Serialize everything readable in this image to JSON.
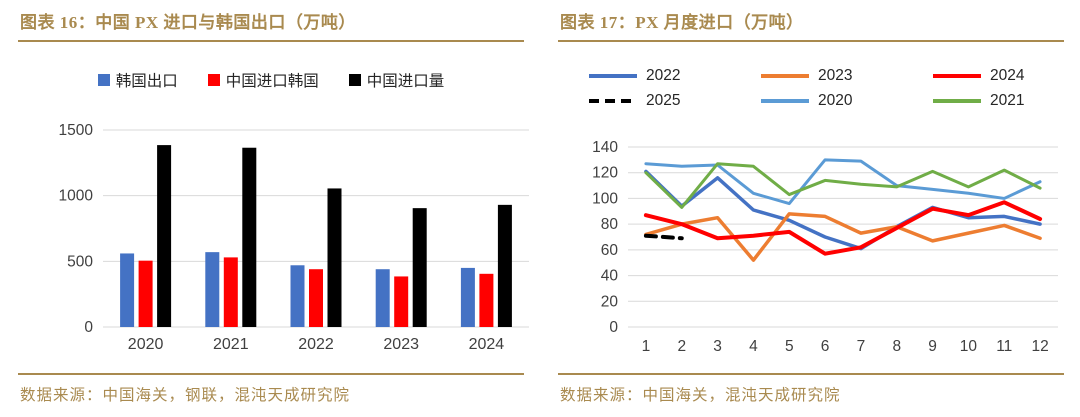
{
  "accent_color": "#A98A4F",
  "grid_color": "#D9D9D9",
  "left_panel": {
    "title": "图表  16：中国 PX 进口与韩国出口（万吨）",
    "source": "数据来源：中国海关，钢联，混沌天成研究院"
  },
  "right_panel": {
    "title": "图表  17：PX 月度进口（万吨）",
    "source": "数据来源：中国海关，混沌天成研究院"
  },
  "chart_data": [
    {
      "type": "bar",
      "title": "中国PX进口与韩国出口（万吨）",
      "categories": [
        "2020",
        "2021",
        "2022",
        "2023",
        "2024"
      ],
      "series": [
        {
          "name": "韩国出口",
          "color": "#4472C4",
          "values": [
            560,
            570,
            470,
            440,
            450
          ]
        },
        {
          "name": "中国进口韩国",
          "color": "#FF0000",
          "values": [
            505,
            530,
            440,
            385,
            405
          ]
        },
        {
          "name": "中国进口量",
          "color": "#000000",
          "values": [
            1385,
            1365,
            1055,
            905,
            930
          ]
        }
      ],
      "ylim": [
        0,
        1500
      ],
      "yticks": [
        0,
        500,
        1000,
        1500
      ],
      "grid": true,
      "legend_position": "top-center"
    },
    {
      "type": "line",
      "title": "PX月度进口（万吨）",
      "x": [
        "1",
        "2",
        "3",
        "4",
        "5",
        "6",
        "7",
        "8",
        "9",
        "10",
        "11",
        "12"
      ],
      "series": [
        {
          "name": "2022",
          "color": "#4472C4",
          "stroke_width": 3.5,
          "values": [
            121,
            94,
            116,
            91,
            83,
            70,
            61,
            78,
            93,
            85,
            86,
            80
          ]
        },
        {
          "name": "2023",
          "color": "#ED7D31",
          "stroke_width": 3.5,
          "values": [
            72,
            80,
            85,
            52,
            88,
            86,
            73,
            78,
            67,
            73,
            79,
            69
          ]
        },
        {
          "name": "2024",
          "color": "#FF0000",
          "stroke_width": 4,
          "values": [
            87,
            80,
            69,
            71,
            74,
            57,
            62,
            77,
            92,
            87,
            97,
            84
          ]
        },
        {
          "name": "2025",
          "color": "#000000",
          "stroke_width": 4,
          "dash": "10,7",
          "values": [
            71,
            69
          ]
        },
        {
          "name": "2020",
          "color": "#5B9BD5",
          "stroke_width": 3,
          "values": [
            127,
            125,
            126,
            104,
            96,
            130,
            129,
            110,
            107,
            104,
            100,
            113
          ]
        },
        {
          "name": "2021",
          "color": "#70AD47",
          "stroke_width": 3,
          "values": [
            120,
            93,
            127,
            125,
            103,
            114,
            111,
            109,
            121,
            109,
            122,
            108
          ]
        }
      ],
      "ylim": [
        0,
        140
      ],
      "yticks": [
        0,
        20,
        40,
        60,
        80,
        100,
        120,
        140
      ],
      "grid": true,
      "legend_position": "top",
      "legend_rows": [
        [
          "2022",
          "2023",
          "2024"
        ],
        [
          "2025",
          "2020",
          "2021"
        ]
      ]
    }
  ]
}
